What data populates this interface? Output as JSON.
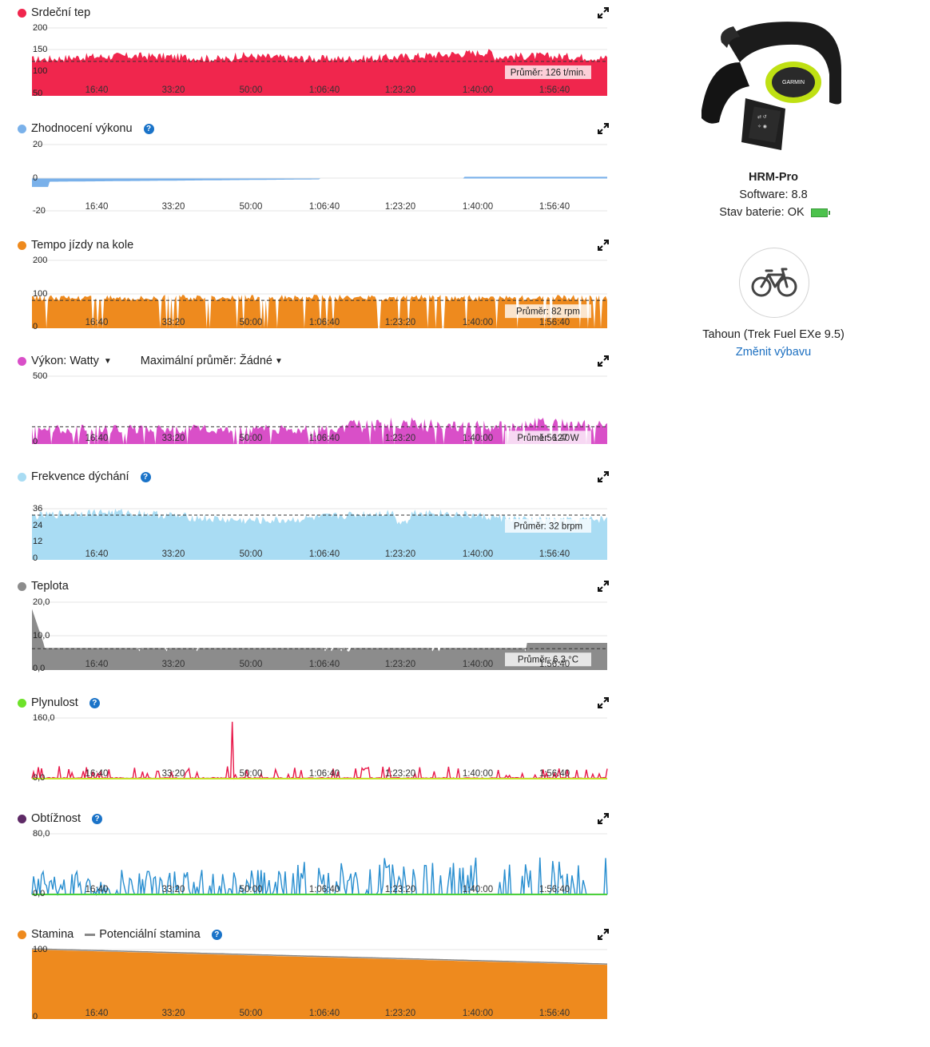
{
  "x_ticks": [
    "16:40",
    "33:20",
    "50:00",
    "1:06:40",
    "1:23:20",
    "1:40:00",
    "1:56:40"
  ],
  "panels": [
    {
      "id": "heart-rate",
      "title": "Srdeční tep",
      "color": "#f0264d",
      "help": false,
      "y_ticks": [
        "200",
        "150",
        "100",
        "50"
      ],
      "y_min": 50,
      "y_max": 200,
      "avg_label": "Průměr: 126 t/min.",
      "avg": 126
    },
    {
      "id": "performance",
      "title": "Zhodnocení výkonu",
      "color": "#7ab1ea",
      "help": true,
      "y_ticks": [
        "20",
        "0",
        "-20"
      ],
      "y_min": -20,
      "y_max": 20
    },
    {
      "id": "cadence",
      "title": "Tempo jízdy na kole",
      "color": "#ee8a1e",
      "help": false,
      "y_ticks": [
        "200",
        "100",
        "0"
      ],
      "y_min": 0,
      "y_max": 200,
      "avg_label": "Průměr: 82 rpm",
      "avg": 82
    },
    {
      "id": "power",
      "title": "Výkon: Watty",
      "color": "#d94fc8",
      "help": false,
      "dropdown2": "Maximální průměr: Žádné",
      "y_ticks": [
        "500",
        "0"
      ],
      "y_min": 0,
      "y_max": 500,
      "avg_label": "Průměr: 127 W",
      "avg": 127
    },
    {
      "id": "respiration",
      "title": "Frekvence dýchání",
      "color": "#a9dcf3",
      "help": true,
      "y_ticks": [
        "36",
        "24",
        "12",
        "0"
      ],
      "y_min": 0,
      "y_max": 48,
      "avg_label": "Průměr: 32 brpm",
      "avg": 32
    },
    {
      "id": "temperature",
      "title": "Teplota",
      "color": "#8c8c8c",
      "help": false,
      "y_ticks": [
        "20,0",
        "10,0",
        "0,0"
      ],
      "y_min": 0,
      "y_max": 20,
      "avg_label": "Průměr: 6,3 °C",
      "avg": 6.3
    },
    {
      "id": "smoothness",
      "title": "Plynulost",
      "color": "#6ee22a",
      "help": true,
      "y_ticks": [
        "160,0",
        "0,0"
      ],
      "y_min": 0,
      "y_max": 160
    },
    {
      "id": "difficulty",
      "title": "Obtížnost",
      "color": "#5e2a66",
      "help": true,
      "y_ticks": [
        "80,0",
        "0,0"
      ],
      "y_min": 0,
      "y_max": 80
    },
    {
      "id": "stamina",
      "title": "Stamina",
      "color": "#ee8a1e",
      "help": true,
      "legend2": "Potenciální stamina",
      "y_ticks": [
        "100",
        "0"
      ],
      "y_min": 0,
      "y_max": 100
    }
  ],
  "device": {
    "name": "HRM-Pro",
    "software": "Software: 8.8",
    "battery": "Stav baterie: OK",
    "brand": "GARMIN",
    "battery_color": "#4cc24c"
  },
  "gear": {
    "name": "Tahoun (Trek Fuel EXe 9.5)",
    "change_link": "Změnit výbavu"
  }
}
